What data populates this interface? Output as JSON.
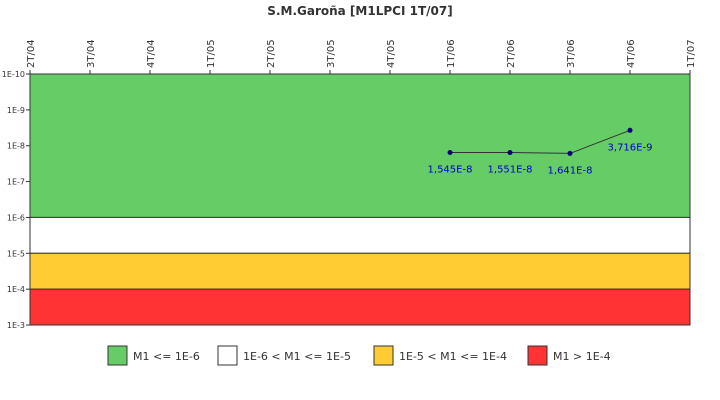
{
  "chart_data": {
    "type": "line",
    "title": "S.M.Garoña [M1LPCI 1T/07]",
    "x_categories": [
      "2T/04",
      "3T/04",
      "4T/04",
      "1T/05",
      "2T/05",
      "3T/05",
      "4T/05",
      "1T/06",
      "2T/06",
      "3T/06",
      "4T/06",
      "1T/07"
    ],
    "y_scale": "log",
    "y_axis_reversed": true,
    "y_ticks": [
      "1E-10",
      "1E-9",
      "1E-8",
      "1E-7",
      "1E-6",
      "1E-5",
      "1E-4",
      "1E-3"
    ],
    "y_range": [
      1e-10,
      0.001
    ],
    "bands": [
      {
        "label": "M1 <= 1E-6",
        "from": 1e-10,
        "to": 1e-06,
        "color": "#66cc66"
      },
      {
        "label": "1E-6 < M1 <= 1E-5",
        "from": 1e-06,
        "to": 1e-05,
        "color": "#ffffff"
      },
      {
        "label": "1E-5 < M1 <= 1E-4",
        "from": 1e-05,
        "to": 0.0001,
        "color": "#ffcc33"
      },
      {
        "label": "M1 > 1E-4",
        "from": 0.0001,
        "to": 0.001,
        "color": "#ff3333"
      }
    ],
    "series": [
      {
        "points": [
          {
            "x": "1T/06",
            "y": 1.545e-08,
            "label": "1,545E-8"
          },
          {
            "x": "2T/06",
            "y": 1.551e-08,
            "label": "1,551E-8"
          },
          {
            "x": "3T/06",
            "y": 1.641e-08,
            "label": "1,641E-8"
          },
          {
            "x": "4T/06",
            "y": 3.716e-09,
            "label": "3,716E-9"
          }
        ],
        "line_color": "#333333",
        "marker_color": "#000080"
      }
    ],
    "legend_position": "bottom",
    "grid": false
  }
}
